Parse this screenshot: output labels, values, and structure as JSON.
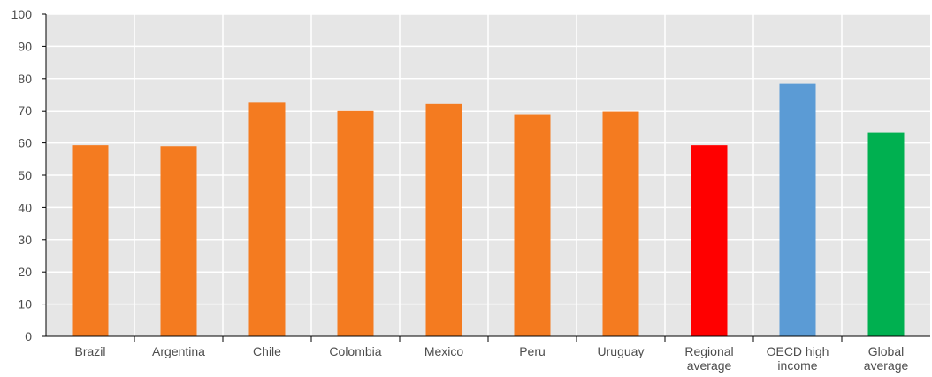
{
  "chart_data": {
    "type": "bar",
    "title": "",
    "xlabel": "",
    "ylabel": "",
    "ylim": [
      0,
      100
    ],
    "yticks": [
      0,
      10,
      20,
      30,
      40,
      50,
      60,
      70,
      80,
      90,
      100
    ],
    "grid": true,
    "categories": [
      [
        "Brazil"
      ],
      [
        "Argentina"
      ],
      [
        "Chile"
      ],
      [
        "Colombia"
      ],
      [
        "Mexico"
      ],
      [
        "Peru"
      ],
      [
        "Uruguay"
      ],
      [
        "Regional",
        "average"
      ],
      [
        "OECD high",
        "income"
      ],
      [
        "Global",
        "average"
      ]
    ],
    "values": [
      59.3,
      59.0,
      72.7,
      70.1,
      72.3,
      68.8,
      69.9,
      59.3,
      78.4,
      63.3
    ],
    "colors": [
      "#f47b20",
      "#f47b20",
      "#f47b20",
      "#f47b20",
      "#f47b20",
      "#f47b20",
      "#f47b20",
      "#ff0000",
      "#5b9bd5",
      "#00b050"
    ]
  }
}
